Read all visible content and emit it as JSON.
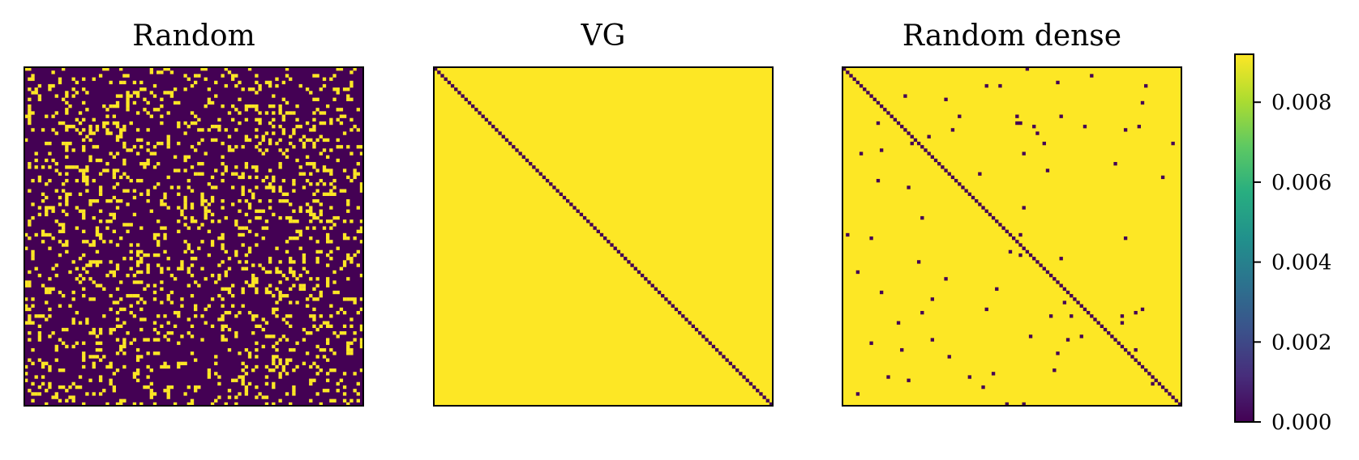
{
  "chart_data": [
    {
      "type": "heatmap",
      "title": "Random",
      "size": 100,
      "value_off": 0.0,
      "value_on": 0.0092,
      "background": "off",
      "density": 0.16,
      "seed": 7,
      "diagonal": "none",
      "axes_ticks": false
    },
    {
      "type": "heatmap",
      "title": "VG",
      "size": 100,
      "value_off": 0.0,
      "value_on": 0.0092,
      "background": "on",
      "density": 0.0,
      "seed": 11,
      "diagonal": "off",
      "axes_ticks": false
    },
    {
      "type": "heatmap",
      "title": "Random dense",
      "size": 100,
      "value_off": 0.0,
      "value_on": 0.0092,
      "background": "on",
      "density": 0.008,
      "seed": 23,
      "diagonal": "off",
      "axes_ticks": false
    }
  ],
  "colorbar": {
    "colormap": "viridis",
    "min": 0.0,
    "max": 0.0092,
    "ticks": [
      {
        "value": 0.0,
        "label": "0.000"
      },
      {
        "value": 0.002,
        "label": "0.002"
      },
      {
        "value": 0.004,
        "label": "0.004"
      },
      {
        "value": 0.006,
        "label": "0.006"
      },
      {
        "value": 0.008,
        "label": "0.008"
      }
    ]
  },
  "colors": {
    "low": "#440154",
    "high": "#fde725",
    "frame": "#000000"
  }
}
